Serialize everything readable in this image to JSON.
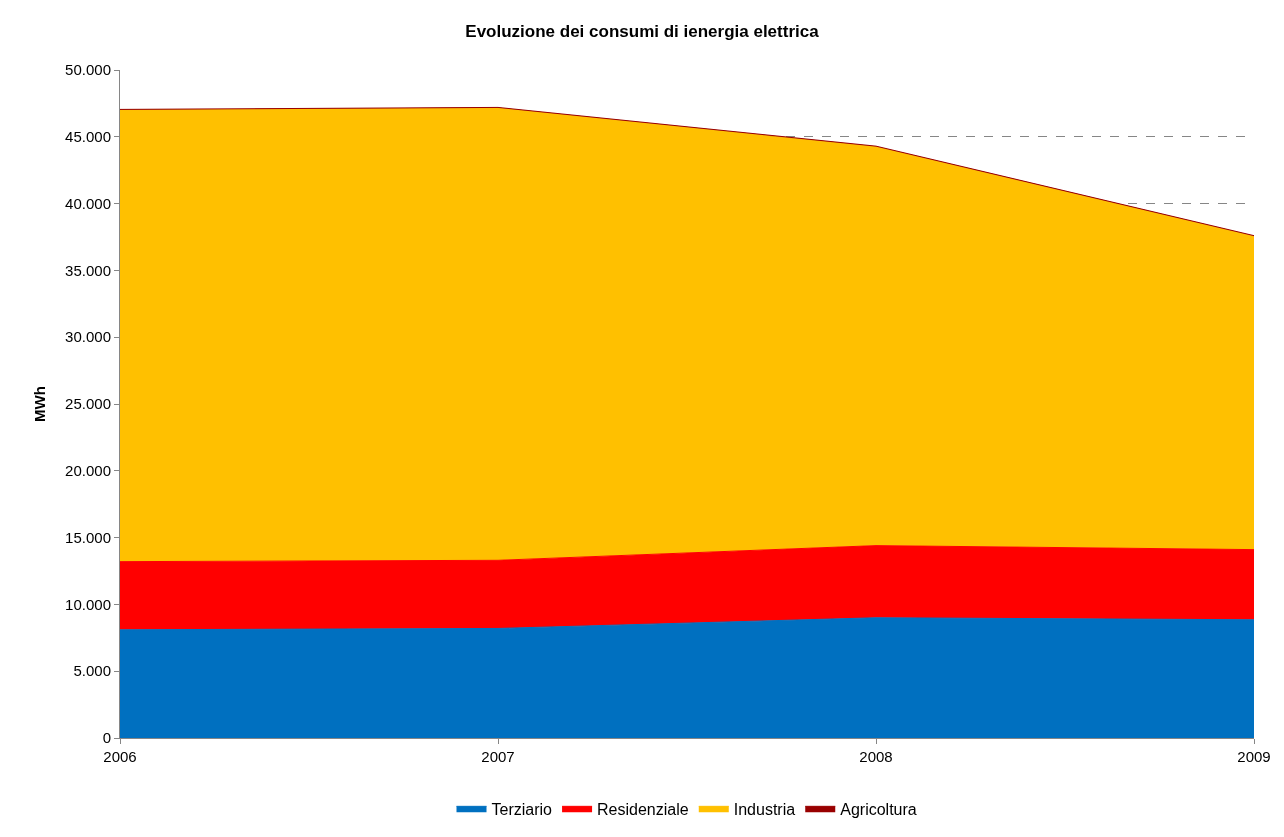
{
  "chart_data": {
    "type": "area",
    "stacked": true,
    "title": "Evoluzione dei consumi di ienergia elettrica",
    "ylabel": "MWh",
    "x": [
      2006,
      2007,
      2008,
      2009
    ],
    "series": [
      {
        "name": "Terziario",
        "color": "#0070c0",
        "values": [
          8100,
          8200,
          9000,
          8850
        ]
      },
      {
        "name": "Residenziale",
        "color": "#ff0000",
        "values": [
          5100,
          5100,
          5400,
          5250
        ]
      },
      {
        "name": "Industria",
        "color": "#ffc000",
        "values": [
          33800,
          33850,
          29850,
          23450
        ]
      },
      {
        "name": "Agricoltura",
        "color": "#990000",
        "values": [
          50,
          50,
          50,
          50
        ]
      }
    ],
    "xlim": [
      2006,
      2009
    ],
    "xticks": [
      2006,
      2007,
      2008,
      2009
    ],
    "ylim": [
      0,
      50000
    ],
    "yticks": [
      0,
      {
        "value": 5000,
        "label": "5.000"
      },
      {
        "value": 10000,
        "label": "10.000"
      },
      {
        "value": 15000,
        "label": "15.000"
      },
      {
        "value": 20000,
        "label": "20.000"
      },
      {
        "value": 25000,
        "label": "25.000"
      },
      {
        "value": 30000,
        "label": "30.000"
      },
      {
        "value": 35000,
        "label": "35.000"
      },
      {
        "value": 40000,
        "label": "40.000"
      },
      {
        "value": 45000,
        "label": "45.000"
      },
      {
        "value": 50000,
        "label": "50.000"
      }
    ],
    "grid": "y",
    "legend": "bottom"
  }
}
